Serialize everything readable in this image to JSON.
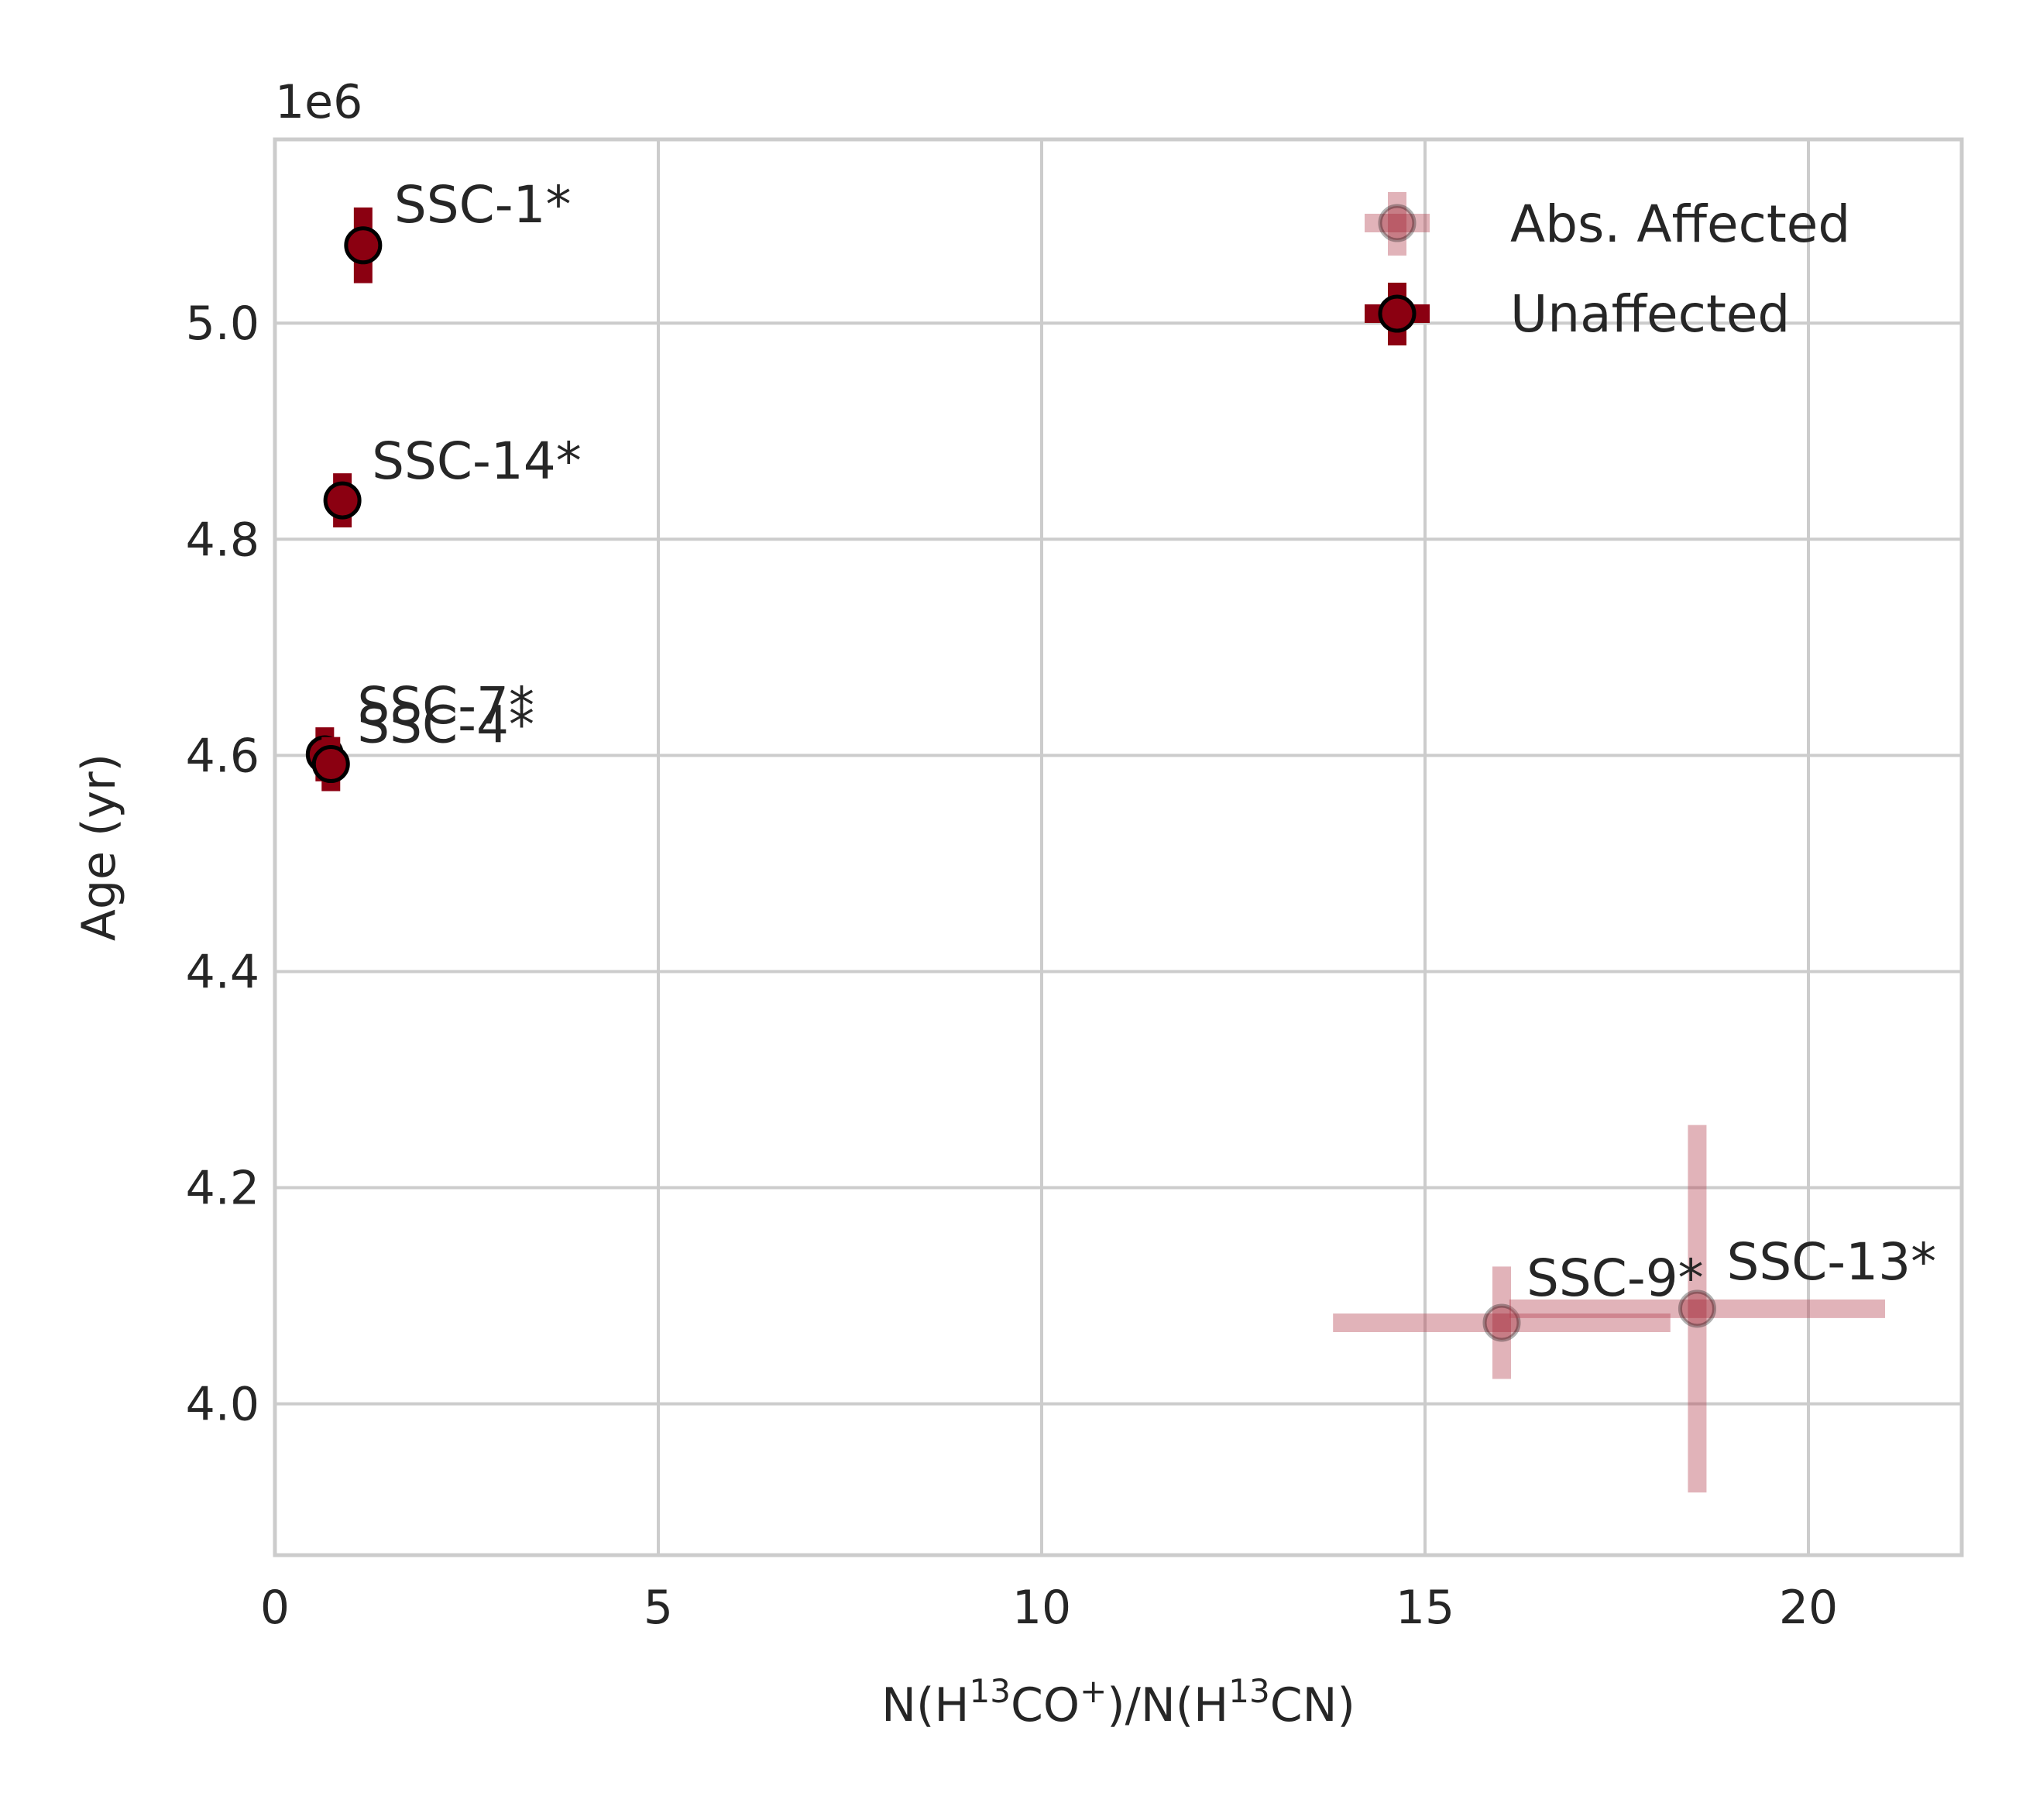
{
  "chart_data": {
    "type": "scatter",
    "title": "",
    "xlabel_parts": [
      "N(H",
      "13",
      "CO",
      "+",
      ")/N(H",
      "13",
      "CN)"
    ],
    "ylabel": "Age (yr)",
    "offset_text": "1e6",
    "xlim": [
      0,
      22
    ],
    "ylim": [
      3.86,
      5.17
    ],
    "xticks": [
      0,
      5,
      10,
      15,
      20
    ],
    "yticks": [
      4.0,
      4.2,
      4.4,
      4.6,
      4.8,
      5.0
    ],
    "xtick_labels": [
      "0",
      "5",
      "10",
      "15",
      "20"
    ],
    "ytick_labels": [
      "4.0",
      "4.2",
      "4.4",
      "4.6",
      "4.8",
      "5.0"
    ],
    "grid": true,
    "legend_position": "top-right",
    "colors": {
      "marker": "#8b0011",
      "affected": "#b5404f",
      "grid": "#cccccc",
      "text": "#262626"
    },
    "series": [
      {
        "name": "Abs. Affected",
        "style": "affected",
        "points": [
          {
            "label": "SSC-9*",
            "x": 16.0,
            "y": 4.075,
            "xerr": 2.2,
            "yerr": 0.052
          },
          {
            "label": "SSC-13*",
            "x": 18.55,
            "y": 4.088,
            "xerr": 2.45,
            "yerr": 0.17
          }
        ]
      },
      {
        "name": "Unaffected",
        "style": "unaffected",
        "points": [
          {
            "label": "SSC-1*",
            "x": 1.15,
            "y": 5.072,
            "xerr": 0.0,
            "yerr": 0.035
          },
          {
            "label": "SSC-14*",
            "x": 0.88,
            "y": 4.836,
            "xerr": 0.0,
            "yerr": 0.025
          },
          {
            "label": "SSC-7*",
            "x": 0.65,
            "y": 4.601,
            "xerr": 0.0,
            "yerr": 0.025
          },
          {
            "label": "SSC-4*",
            "x": 0.73,
            "y": 4.592,
            "xerr": 0.0,
            "yerr": 0.025
          }
        ]
      }
    ]
  }
}
